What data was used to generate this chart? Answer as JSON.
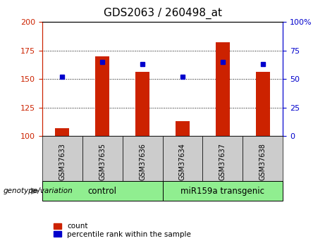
{
  "title": "GDS2063 / 260498_at",
  "samples": [
    "GSM37633",
    "GSM37635",
    "GSM37636",
    "GSM37634",
    "GSM37637",
    "GSM37638"
  ],
  "count_values": [
    107,
    170,
    156,
    113,
    182,
    156
  ],
  "percentile_values": [
    52,
    65,
    63,
    52,
    65,
    63
  ],
  "ylim_left": [
    100,
    200
  ],
  "ylim_right": [
    0,
    100
  ],
  "yticks_left": [
    100,
    125,
    150,
    175,
    200
  ],
  "yticks_right": [
    0,
    25,
    50,
    75,
    100
  ],
  "bar_color": "#cc2200",
  "dot_color": "#0000cc",
  "bar_width": 0.35,
  "control_label": "control",
  "transgenic_label": "miR159a transgenic",
  "control_indices": [
    0,
    1,
    2
  ],
  "transgenic_indices": [
    3,
    4,
    5
  ],
  "legend_count": "count",
  "legend_percentile": "percentile rank within the sample",
  "genotype_label": "genotype/variation",
  "group_bg": "#90ee90",
  "xlabel_bg": "#cccccc",
  "title_fontsize": 11,
  "tick_fontsize": 8,
  "sample_fontsize": 7,
  "group_label_fontsize": 8.5,
  "legend_fontsize": 7.5,
  "genotype_fontsize": 7.5
}
